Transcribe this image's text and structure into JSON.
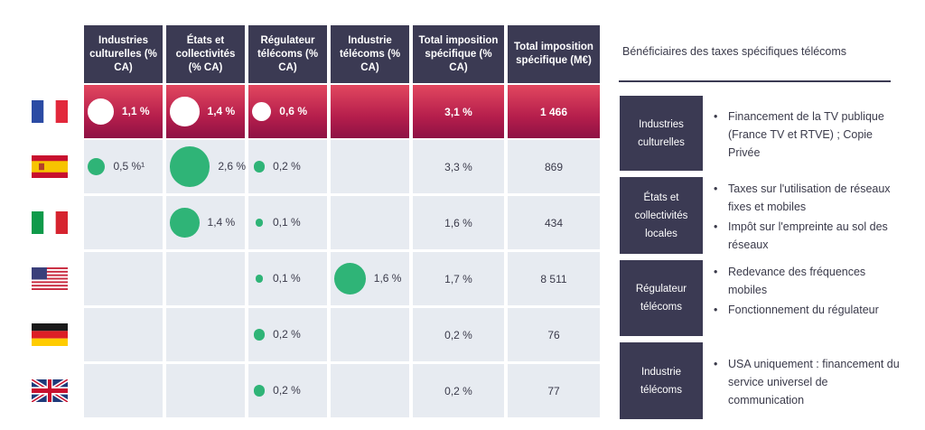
{
  "chart_data": {
    "type": "table",
    "columns": [
      "Industries culturelles (% CA)",
      "États et collectivités (% CA)",
      "Régulateur télécoms (% CA)",
      "Industrie télécoms (% CA)",
      "Total imposition spécifique (% CA)",
      "Total imposition spécifique (M€)"
    ],
    "rows": [
      {
        "country": "France",
        "flag": "flag-france-icon",
        "industries_culturelles": 1.1,
        "etats_collectivites": 1.4,
        "regulateur": 0.6,
        "industrie": null,
        "labels": {
          "industries_culturelles": "1,1 %",
          "etats_collectivites": "1,4 %",
          "regulateur": "0,6 %",
          "industrie": "",
          "total_pct": "3,1 %",
          "total_meur": "1 466"
        }
      },
      {
        "country": "Espagne",
        "flag": "flag-spain-icon",
        "industries_culturelles": 0.5,
        "etats_collectivites": 2.6,
        "regulateur": 0.2,
        "industrie": null,
        "labels": {
          "industries_culturelles": "0,5 %¹",
          "etats_collectivites": "2,6 %",
          "regulateur": "0,2 %",
          "industrie": "",
          "total_pct": "3,3 %",
          "total_meur": "869"
        }
      },
      {
        "country": "Italie",
        "flag": "flag-italy-icon",
        "industries_culturelles": null,
        "etats_collectivites": 1.4,
        "regulateur": 0.1,
        "industrie": null,
        "labels": {
          "industries_culturelles": "",
          "etats_collectivites": "1,4 %",
          "regulateur": "0,1 %",
          "industrie": "",
          "total_pct": "1,6 %",
          "total_meur": "434"
        }
      },
      {
        "country": "États-Unis",
        "flag": "flag-usa-icon",
        "industries_culturelles": null,
        "etats_collectivites": null,
        "regulateur": 0.1,
        "industrie": 1.6,
        "labels": {
          "industries_culturelles": "",
          "etats_collectivites": "",
          "regulateur": "0,1 %",
          "industrie": "1,6 %",
          "total_pct": "1,7 %",
          "total_meur": "8 511"
        }
      },
      {
        "country": "Allemagne",
        "flag": "flag-germany-icon",
        "industries_culturelles": null,
        "etats_collectivites": null,
        "regulateur": 0.2,
        "industrie": null,
        "labels": {
          "industries_culturelles": "",
          "etats_collectivites": "",
          "regulateur": "0,2 %",
          "industrie": "",
          "total_pct": "0,2 %",
          "total_meur": "76"
        }
      },
      {
        "country": "Royaume-Uni",
        "flag": "flag-uk-icon",
        "industries_culturelles": null,
        "etats_collectivites": null,
        "regulateur": 0.2,
        "industrie": null,
        "labels": {
          "industries_culturelles": "",
          "etats_collectivites": "",
          "regulateur": "0,2 %",
          "industrie": "",
          "total_pct": "0,2 %",
          "total_meur": "77"
        }
      }
    ],
    "highlight_row": "France",
    "colors": {
      "header": "#3b3a53",
      "cell": "#e7ebf1",
      "bubble": "#2fb477",
      "highlight_top": "#e2475f",
      "highlight_bottom": "#8e1244",
      "highlight_bubble": "#ffffff"
    }
  },
  "sidebar": {
    "title": "Bénéficiaires des taxes spécifiques télécoms",
    "groups": [
      {
        "label": "Industries culturelles",
        "items": [
          "Financement de la TV publique (France TV et RTVE) ; Copie Privée"
        ]
      },
      {
        "label": "États et collectivités locales",
        "items": [
          "Taxes sur l'utilisation de réseaux fixes et mobiles",
          "Impôt sur l'empreinte au sol des réseaux"
        ]
      },
      {
        "label": "Régulateur télécoms",
        "items": [
          "Redevance des fréquences mobiles",
          "Fonctionnement du régulateur"
        ]
      },
      {
        "label": "Industrie télécoms",
        "items": [
          "USA uniquement : financement du service universel de communication"
        ]
      }
    ]
  }
}
